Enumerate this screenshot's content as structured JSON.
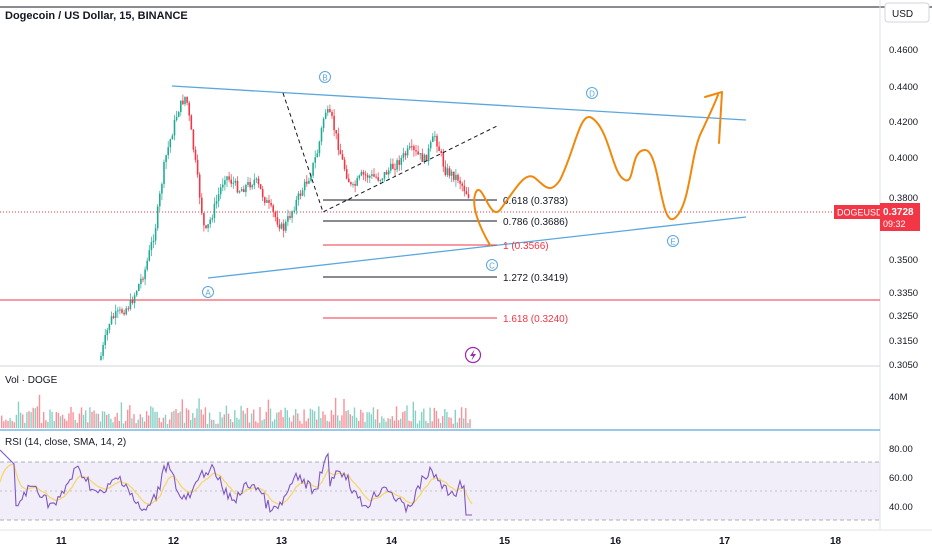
{
  "header": {
    "symbol_title": "Dogecoin / US Dollar, 15, BINANCE",
    "currency_button": "USD"
  },
  "price_axis": {
    "ticks": [
      "0.4600",
      "0.4400",
      "0.4200",
      "0.4000",
      "0.3800",
      "0.3500",
      "0.3350",
      "0.3250",
      "0.3150",
      "0.3050"
    ],
    "current_badge_symbol": "DOGEUSD",
    "current_badge_price": "0.3728",
    "current_badge_countdown": "09:32"
  },
  "time_axis": {
    "ticks": [
      "11",
      "12",
      "13",
      "14",
      "15",
      "16",
      "17",
      "18"
    ]
  },
  "volume_pane": {
    "label": "Vol · DOGE",
    "axis_label": "40M"
  },
  "rsi_pane": {
    "label": "RSI (14, close, SMA, 14, 2)",
    "ticks": [
      "80.00",
      "60.00",
      "40.00"
    ]
  },
  "fib_levels": [
    {
      "label": "0.618 (0.3783)",
      "color": "#131722"
    },
    {
      "label": "0.786 (0.3686)",
      "color": "#131722"
    },
    {
      "label": "1 (0.3566)",
      "color": "#f23645"
    },
    {
      "label": "1.272 (0.3419)",
      "color": "#131722"
    },
    {
      "label": "1.618 (0.3240)",
      "color": "#f23645"
    }
  ],
  "wave_labels": [
    "A",
    "B",
    "C",
    "D",
    "E"
  ],
  "colors": {
    "triangle_line": "#5ba7dd",
    "projection_path": "#f0880c",
    "candle_up": "#22ab94",
    "candle_down": "#f23645",
    "rsi_line": "#7e57c2",
    "rsi_ma": "#f5d76e",
    "price_badge": "#f23645",
    "lightning_icon": "#9c27b0"
  },
  "chart_data": {
    "type": "candlestick",
    "title": "Dogecoin / US Dollar, 15, BINANCE",
    "x_range": [
      10.9,
      18.2
    ],
    "y_range": [
      0.305,
      0.466
    ],
    "current_price": 0.3728,
    "fib_retracement": [
      {
        "ratio": 0.618,
        "price": 0.3783
      },
      {
        "ratio": 0.786,
        "price": 0.3686
      },
      {
        "ratio": 1,
        "price": 0.3566
      },
      {
        "ratio": 1.272,
        "price": 0.3419
      },
      {
        "ratio": 1.618,
        "price": 0.324
      }
    ],
    "rsi_levels": [
      70,
      50,
      30
    ]
  }
}
